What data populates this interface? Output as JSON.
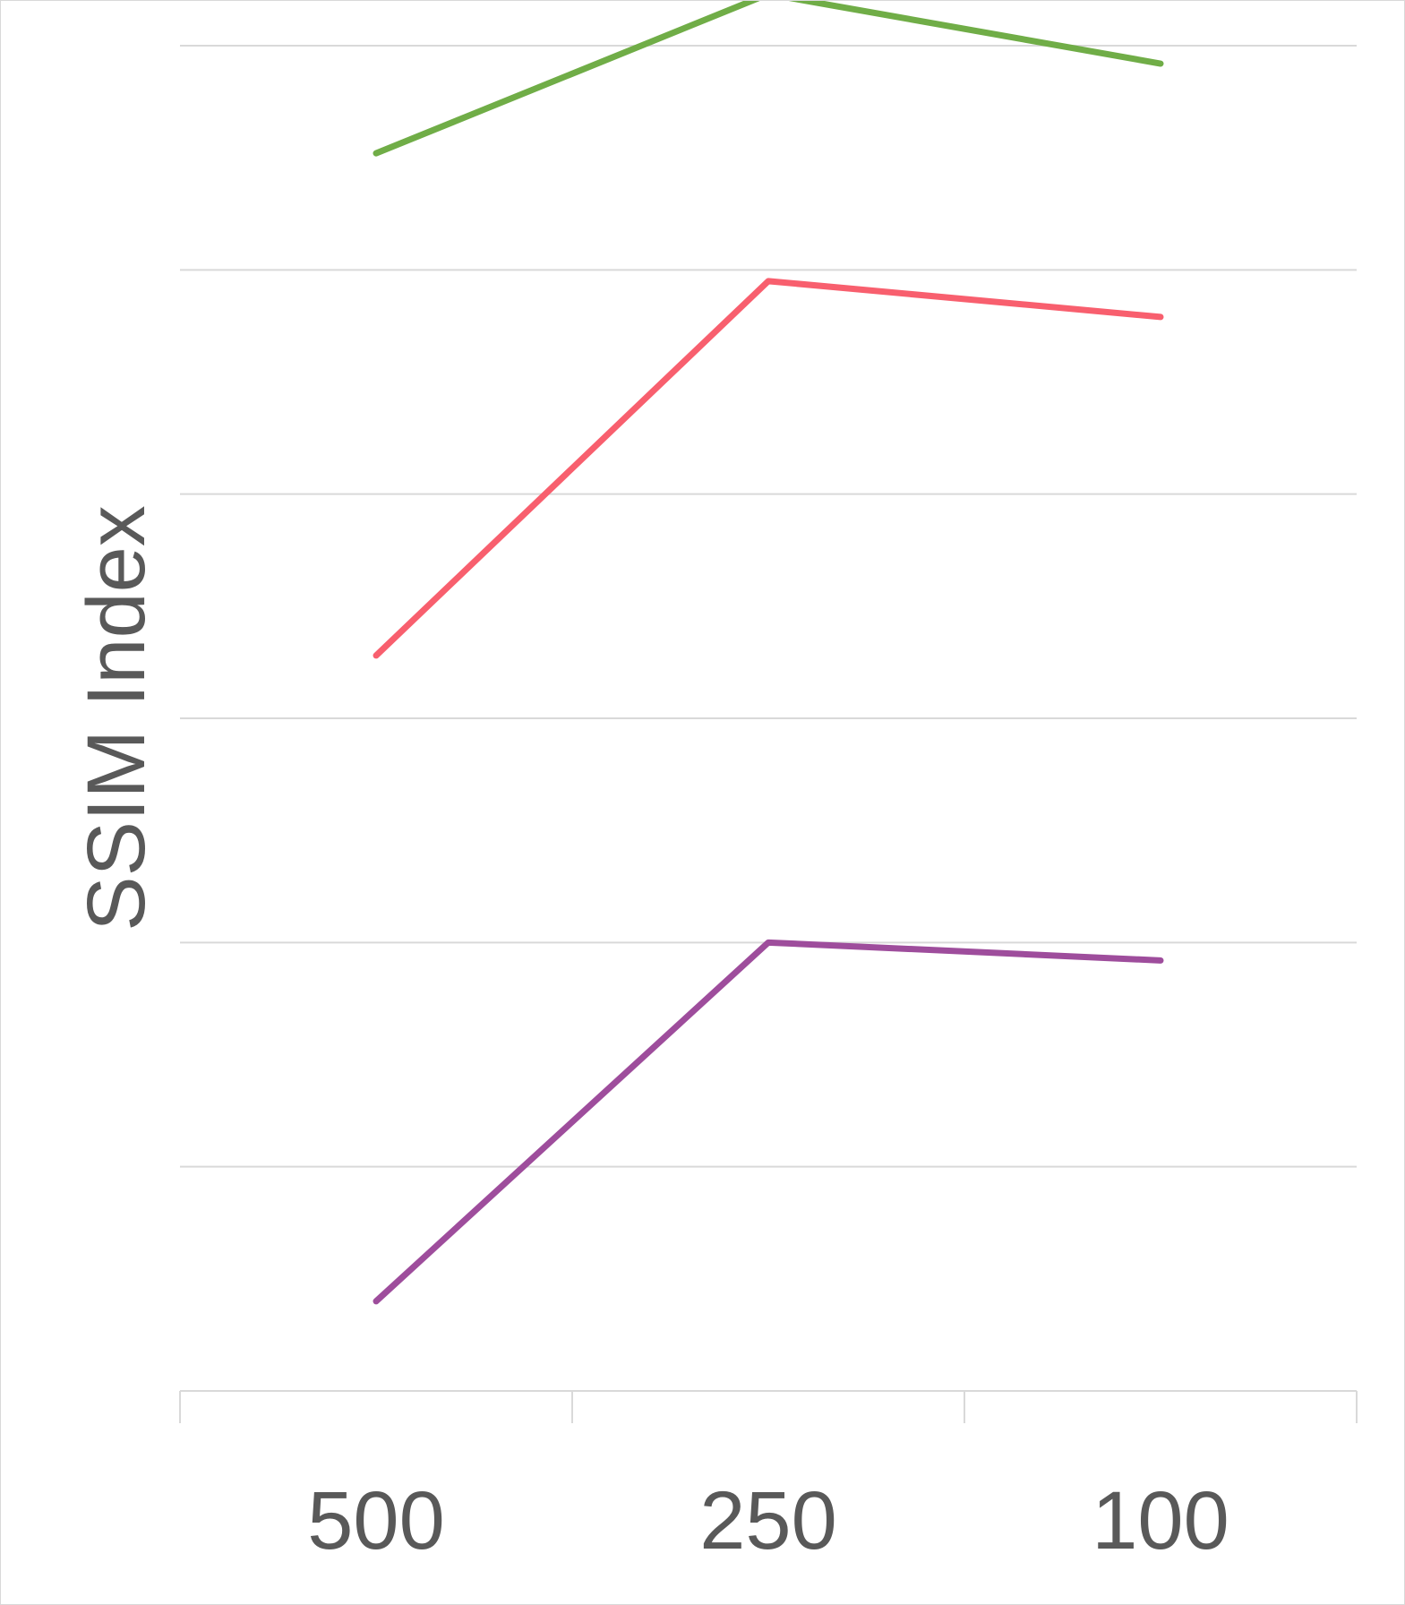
{
  "chart_data": {
    "type": "line",
    "title": "",
    "xlabel": "",
    "ylabel": "SSIM Index",
    "categories": [
      "500",
      "250",
      "100"
    ],
    "ylim": [
      0,
      6
    ],
    "y_gridlines": 6,
    "y_tick_labels_visible": false,
    "grid": true,
    "legend": "none",
    "series": [
      {
        "color": "#70ad47",
        "values": [
          5.52,
          6.23,
          5.92
        ]
      },
      {
        "color": "#f85f6e",
        "values": [
          3.28,
          4.95,
          4.79
        ]
      },
      {
        "color": "#9e4d9c",
        "values": [
          0.4,
          2.0,
          1.92
        ]
      }
    ]
  }
}
